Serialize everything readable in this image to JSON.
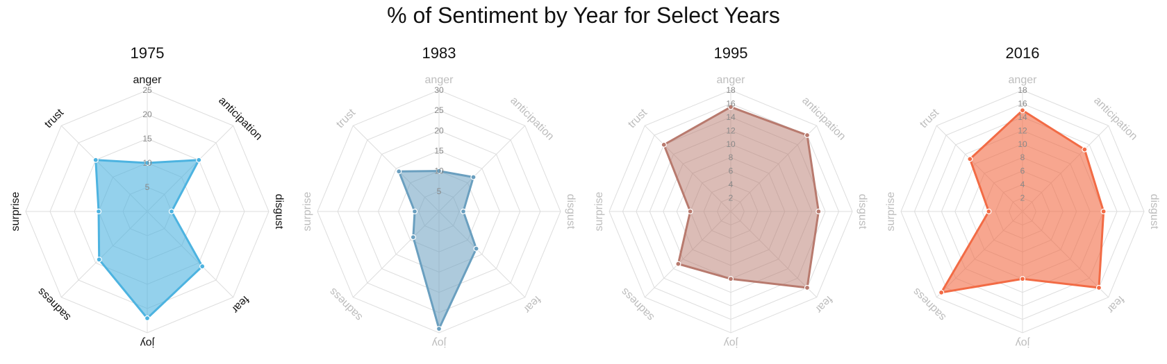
{
  "title": "% of Sentiment by Year for Select Years",
  "chart_data": [
    {
      "type": "radar",
      "title": "1975",
      "categories": [
        "anger",
        "anticipation",
        "disgust",
        "fear",
        "joy",
        "sadness",
        "surprise",
        "trust"
      ],
      "values": [
        10,
        15,
        5,
        16,
        22,
        14,
        10,
        15
      ],
      "rmax": 25,
      "ticks": [
        5,
        10,
        15,
        20,
        25
      ],
      "color": "#4db3e0",
      "fill_opacity": 0.6,
      "labels_active": true
    },
    {
      "type": "radar",
      "title": "1983",
      "categories": [
        "anger",
        "anticipation",
        "disgust",
        "fear",
        "joy",
        "sadness",
        "surprise",
        "trust"
      ],
      "values": [
        10,
        12,
        6,
        13,
        29,
        9,
        6,
        14
      ],
      "rmax": 30,
      "ticks": [
        5,
        10,
        15,
        20,
        25,
        30
      ],
      "color": "#6a9fbf",
      "fill_opacity": 0.55,
      "labels_active": false
    },
    {
      "type": "radar",
      "title": "1995",
      "categories": [
        "anger",
        "anticipation",
        "disgust",
        "fear",
        "joy",
        "sadness",
        "surprise",
        "trust"
      ],
      "values": [
        15.5,
        16,
        13,
        16,
        10,
        11,
        6,
        14
      ],
      "rmax": 18,
      "ticks": [
        2,
        4,
        6,
        8,
        10,
        12,
        14,
        16,
        18
      ],
      "color": "#b87a6e",
      "fill_opacity": 0.5,
      "labels_active": false
    },
    {
      "type": "radar",
      "title": "2016",
      "categories": [
        "anger",
        "anticipation",
        "disgust",
        "fear",
        "joy",
        "sadness",
        "surprise",
        "trust"
      ],
      "values": [
        15,
        13,
        12,
        16,
        10,
        17,
        5,
        11
      ],
      "rmax": 18,
      "ticks": [
        2,
        4,
        6,
        8,
        10,
        12,
        14,
        16,
        18
      ],
      "color": "#f26b45",
      "fill_opacity": 0.6,
      "labels_active": false
    }
  ]
}
